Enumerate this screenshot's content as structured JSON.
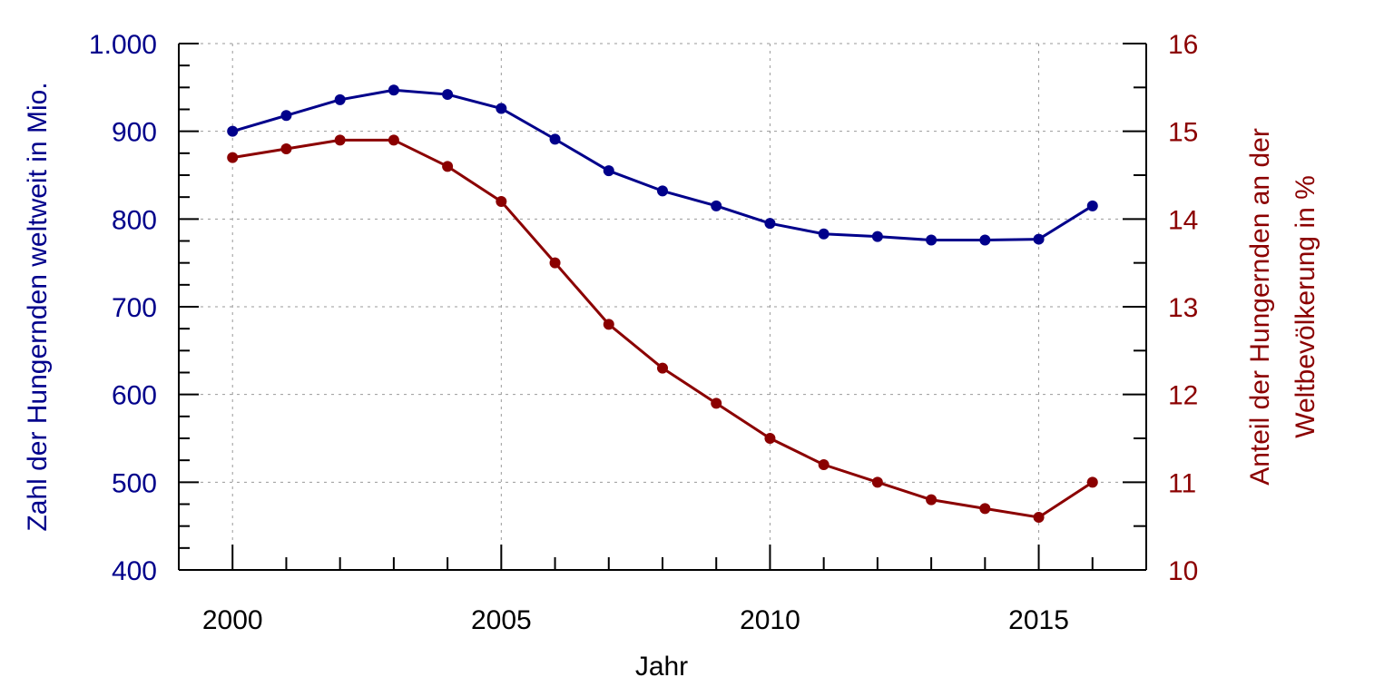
{
  "chart_data": {
    "type": "line",
    "xlabel": "Jahr",
    "ylabel_left": "Zahl der Hungernden weltweit in Mio.",
    "ylabel_right_lines": [
      "Anteil der Hungernden an der",
      "Weltbevölkerung in %"
    ],
    "x": [
      2000,
      2001,
      2002,
      2003,
      2004,
      2005,
      2006,
      2007,
      2008,
      2009,
      2010,
      2011,
      2012,
      2013,
      2014,
      2015,
      2016
    ],
    "x_ticks": [
      2000,
      2005,
      2010,
      2015
    ],
    "x_tick_labels": [
      "2000",
      "2005",
      "2010",
      "2015"
    ],
    "xlim": [
      1999,
      2017
    ],
    "y_left_lim": [
      400,
      1000
    ],
    "y_left_ticks": [
      400,
      500,
      600,
      700,
      800,
      900,
      1000
    ],
    "y_left_tick_labels": [
      "400",
      "500",
      "600",
      "700",
      "800",
      "900",
      "1.000"
    ],
    "y_right_lim": [
      10,
      16
    ],
    "y_right_ticks": [
      10,
      11,
      12,
      13,
      14,
      15,
      16
    ],
    "y_right_tick_labels": [
      "10",
      "11",
      "12",
      "13",
      "14",
      "15",
      "16"
    ],
    "grid": true,
    "series": [
      {
        "axis": "left",
        "color": "#00008b",
        "values": [
          900,
          918,
          936,
          947,
          942,
          926,
          891,
          855,
          832,
          815,
          795,
          783,
          780,
          776,
          776,
          777,
          815
        ]
      },
      {
        "axis": "right",
        "color": "#8b0000",
        "values": [
          14.7,
          14.8,
          14.9,
          14.9,
          14.6,
          14.2,
          13.5,
          12.8,
          12.3,
          11.9,
          11.5,
          11.2,
          11.0,
          10.8,
          10.7,
          10.6,
          11.0
        ]
      }
    ]
  }
}
